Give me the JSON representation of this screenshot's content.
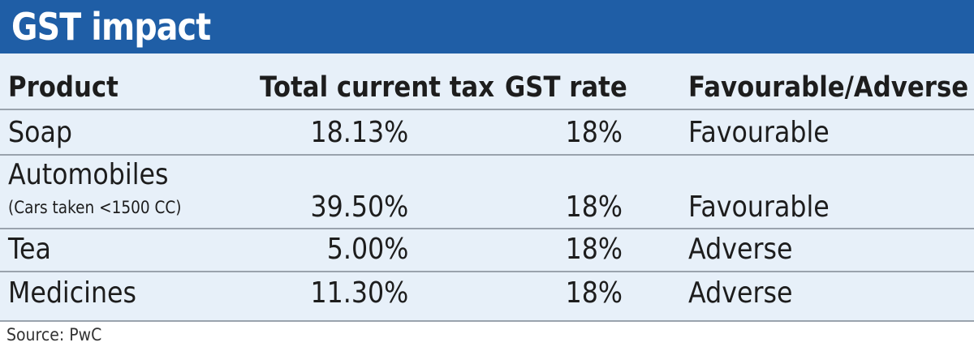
{
  "title": "GST impact",
  "chart_data": {
    "type": "table",
    "title": "GST impact",
    "columns": [
      "Product",
      "Total current tax",
      "GST rate",
      "Favourable/Adverse"
    ],
    "rows": [
      {
        "product": "Soap",
        "note": "",
        "current_tax": "18.13%",
        "gst_rate": "18%",
        "impact": "Favourable"
      },
      {
        "product": "Automobiles",
        "note": "(Cars taken <1500 CC)",
        "current_tax": "39.50%",
        "gst_rate": "18%",
        "impact": "Favourable"
      },
      {
        "product": "Tea",
        "note": "",
        "current_tax": "5.00%",
        "gst_rate": "18%",
        "impact": "Adverse"
      },
      {
        "product": "Medicines",
        "note": "",
        "current_tax": "11.30%",
        "gst_rate": "18%",
        "impact": "Adverse"
      }
    ]
  },
  "source": "Source: PwC",
  "colors": {
    "header_bg": "#1f5ea6",
    "table_bg": "#e7f0f9",
    "rule": "#9aa3ad"
  }
}
